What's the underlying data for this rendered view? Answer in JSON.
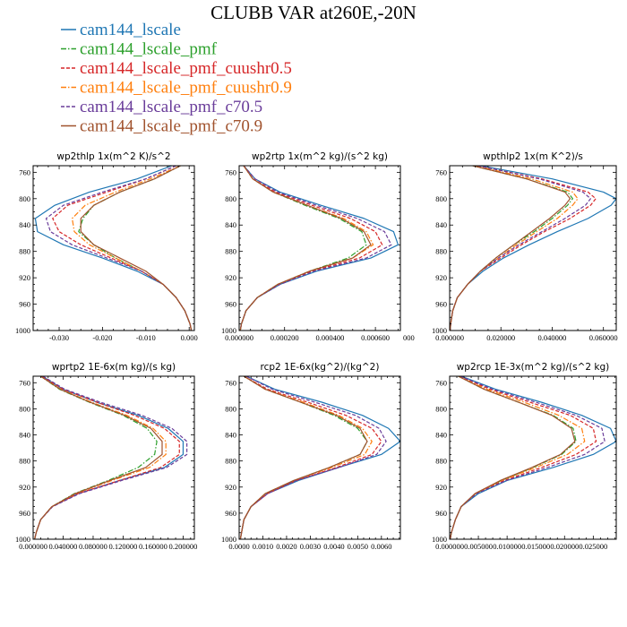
{
  "figure": {
    "title": "CLUBB VAR at260E,-20N"
  },
  "legend": [
    {
      "name": "cam144_lscale",
      "color": "#1f77b4",
      "dash": "solid"
    },
    {
      "name": "cam144_lscale_pmf",
      "color": "#2ca02c",
      "dash": "dashdot"
    },
    {
      "name": "cam144_lscale_pmf_cuushr0.5",
      "color": "#d62728",
      "dash": "dashed"
    },
    {
      "name": "cam144_lscale_pmf_cuushr0.9",
      "color": "#ff7f0e",
      "dash": "dashdot"
    },
    {
      "name": "cam144_lscale_pmf_c70.5",
      "color": "#6a3d9a",
      "dash": "dashed"
    },
    {
      "name": "cam144_lscale_pmf_c70.9",
      "color": "#a0522d",
      "dash": "solid"
    }
  ],
  "chart_data": [
    {
      "type": "line",
      "title": "wp2thlp  1x(m^2 K)/s^2",
      "y": [
        750,
        770,
        790,
        810,
        830,
        850,
        870,
        890,
        910,
        930,
        950,
        970,
        990,
        1000
      ],
      "xlim": [
        -0.036,
        0.0012
      ],
      "ylim": [
        1000,
        750
      ],
      "xticks": [
        -0.03,
        -0.02,
        -0.01,
        0.0
      ],
      "xtick_labels": [
        "-0.030",
        "-0.020",
        "-0.010",
        "0.000"
      ],
      "yticks": [
        760,
        800,
        840,
        880,
        920,
        960,
        1000
      ],
      "ytick_labels": [
        "760",
        "800",
        "840",
        "880",
        "920",
        "960",
        "1000"
      ],
      "series": [
        {
          "name": "cam144_lscale",
          "values": [
            -0.004,
            -0.012,
            -0.023,
            -0.031,
            -0.0355,
            -0.035,
            -0.029,
            -0.02,
            -0.012,
            -0.006,
            -0.003,
            -0.001,
            0.0002,
            0.0005
          ]
        },
        {
          "name": "cam144_lscale_pmf",
          "values": [
            -0.002,
            -0.008,
            -0.016,
            -0.022,
            -0.0245,
            -0.0255,
            -0.022,
            -0.017,
            -0.011,
            -0.006,
            -0.003,
            -0.001,
            0.0002,
            0.0005
          ]
        },
        {
          "name": "cam144_lscale_pmf_cuushr0.5",
          "values": [
            -0.003,
            -0.01,
            -0.019,
            -0.028,
            -0.0315,
            -0.03,
            -0.025,
            -0.018,
            -0.011,
            -0.006,
            -0.003,
            -0.001,
            0.0002,
            0.0005
          ]
        },
        {
          "name": "cam144_lscale_pmf_cuushr0.9",
          "values": [
            -0.002,
            -0.009,
            -0.017,
            -0.024,
            -0.027,
            -0.0265,
            -0.023,
            -0.017,
            -0.011,
            -0.006,
            -0.003,
            -0.001,
            0.0002,
            0.0005
          ]
        },
        {
          "name": "cam144_lscale_pmf_c70.5",
          "values": [
            -0.003,
            -0.01,
            -0.02,
            -0.029,
            -0.033,
            -0.032,
            -0.027,
            -0.019,
            -0.011,
            -0.006,
            -0.003,
            -0.001,
            0.0002,
            0.0005
          ]
        },
        {
          "name": "cam144_lscale_pmf_c70.9",
          "values": [
            -0.002,
            -0.008,
            -0.016,
            -0.022,
            -0.025,
            -0.025,
            -0.022,
            -0.016,
            -0.01,
            -0.006,
            -0.003,
            -0.001,
            0.0002,
            0.0005
          ]
        }
      ]
    },
    {
      "type": "line",
      "title": "wp2rtp  1x(m^2 kg)/(s^2 kg)",
      "y": [
        750,
        770,
        790,
        810,
        830,
        850,
        870,
        890,
        910,
        930,
        950,
        970,
        990,
        1000
      ],
      "xlim": [
        0,
        0.00071
      ],
      "ylim": [
        1000,
        750
      ],
      "xticks": [
        0,
        0.0002,
        0.0004,
        0.0006
      ],
      "xtick_labels": [
        "0.000000",
        "0.000200",
        "0.000400",
        "0.000600"
      ],
      "xtick_suffix": "000",
      "yticks": [
        760,
        800,
        840,
        880,
        920,
        960,
        1000
      ],
      "ytick_labels": [
        "760",
        "800",
        "840",
        "880",
        "920",
        "960",
        "1000"
      ],
      "series": [
        {
          "name": "cam144_lscale",
          "values": [
            2e-05,
            7e-05,
            0.00018,
            0.00036,
            0.00055,
            0.00068,
            0.0007,
            0.00058,
            0.00034,
            0.00018,
            8e-05,
            3e-05,
            1e-05,
            5e-06
          ]
        },
        {
          "name": "cam144_lscale_pmf",
          "values": [
            2e-05,
            6e-05,
            0.00015,
            0.00029,
            0.00044,
            0.00054,
            0.00056,
            0.00048,
            0.00031,
            0.00017,
            8e-05,
            3e-05,
            1e-05,
            5e-06
          ]
        },
        {
          "name": "cam144_lscale_pmf_cuushr0.5",
          "values": [
            2e-05,
            6e-05,
            0.00016,
            0.00032,
            0.00049,
            0.0006,
            0.00063,
            0.00053,
            0.00032,
            0.00017,
            8e-05,
            3e-05,
            1e-05,
            5e-06
          ]
        },
        {
          "name": "cam144_lscale_pmf_cuushr0.9",
          "values": [
            2e-05,
            6e-05,
            0.00015,
            0.0003,
            0.00046,
            0.00056,
            0.00059,
            0.0005,
            0.00031,
            0.00017,
            8e-05,
            3e-05,
            1e-05,
            5e-06
          ]
        },
        {
          "name": "cam144_lscale_pmf_c70.5",
          "values": [
            2e-05,
            7e-05,
            0.00017,
            0.00034,
            0.00052,
            0.00064,
            0.00067,
            0.00056,
            0.00033,
            0.00018,
            8e-05,
            3e-05,
            1e-05,
            5e-06
          ]
        },
        {
          "name": "cam144_lscale_pmf_c70.9",
          "values": [
            2e-05,
            6e-05,
            0.00015,
            0.0003,
            0.00045,
            0.00055,
            0.00058,
            0.0005,
            0.00031,
            0.00017,
            8e-05,
            3e-05,
            1e-05,
            5e-06
          ]
        }
      ]
    },
    {
      "type": "line",
      "title": "wpthlp2  1x(m K^2)/s",
      "y": [
        750,
        770,
        790,
        800,
        810,
        830,
        850,
        870,
        890,
        910,
        930,
        950,
        970,
        990,
        1000
      ],
      "xlim": [
        0,
        0.065
      ],
      "ylim": [
        1000,
        750
      ],
      "xticks": [
        0,
        0.02,
        0.04,
        0.06
      ],
      "xtick_labels": [
        "0.000000",
        "0.020000",
        "0.040000",
        "0.060000"
      ],
      "yticks": [
        760,
        800,
        840,
        880,
        920,
        960,
        1000
      ],
      "ytick_labels": [
        "760",
        "800",
        "840",
        "880",
        "920",
        "960",
        "1000"
      ],
      "series": [
        {
          "name": "cam144_lscale",
          "values": [
            0.012,
            0.04,
            0.06,
            0.065,
            0.063,
            0.054,
            0.042,
            0.031,
            0.021,
            0.013,
            0.007,
            0.003,
            0.0012,
            0.0004,
            0.0002
          ]
        },
        {
          "name": "cam144_lscale_pmf",
          "values": [
            0.009,
            0.03,
            0.046,
            0.048,
            0.046,
            0.04,
            0.033,
            0.025,
            0.018,
            0.012,
            0.007,
            0.003,
            0.0012,
            0.0004,
            0.0002
          ]
        },
        {
          "name": "cam144_lscale_pmf_cuushr0.5",
          "values": [
            0.011,
            0.036,
            0.054,
            0.057,
            0.055,
            0.047,
            0.037,
            0.028,
            0.02,
            0.012,
            0.007,
            0.003,
            0.0012,
            0.0004,
            0.0002
          ]
        },
        {
          "name": "cam144_lscale_pmf_cuushr0.9",
          "values": [
            0.01,
            0.032,
            0.048,
            0.05,
            0.048,
            0.042,
            0.034,
            0.026,
            0.019,
            0.012,
            0.007,
            0.003,
            0.0012,
            0.0004,
            0.0002
          ]
        },
        {
          "name": "cam144_lscale_pmf_c70.5",
          "values": [
            0.011,
            0.035,
            0.052,
            0.055,
            0.053,
            0.045,
            0.036,
            0.027,
            0.019,
            0.012,
            0.007,
            0.003,
            0.0012,
            0.0004,
            0.0002
          ]
        },
        {
          "name": "cam144_lscale_pmf_c70.9",
          "values": [
            0.009,
            0.03,
            0.045,
            0.047,
            0.045,
            0.039,
            0.032,
            0.025,
            0.018,
            0.012,
            0.007,
            0.003,
            0.0012,
            0.0004,
            0.0002
          ]
        }
      ]
    },
    {
      "type": "line",
      "title": "wprtp2  1E-6x(m kg)/(s kg)",
      "y": [
        750,
        770,
        790,
        810,
        830,
        850,
        870,
        890,
        910,
        930,
        950,
        970,
        990,
        1000
      ],
      "xlim": [
        0,
        0.215
      ],
      "ylim": [
        1000,
        750
      ],
      "xticks": [
        0,
        0.04,
        0.08,
        0.12,
        0.16,
        0.2
      ],
      "xtick_labels": [
        "0.000000",
        "0.040000",
        "0.080000",
        "0.120000",
        "0.160000",
        "0.200000"
      ],
      "yticks": [
        760,
        800,
        840,
        880,
        920,
        960,
        1000
      ],
      "ytick_labels": [
        "760",
        "800",
        "840",
        "880",
        "920",
        "960",
        "1000"
      ],
      "series": [
        {
          "name": "cam144_lscale",
          "values": [
            0.012,
            0.04,
            0.085,
            0.14,
            0.18,
            0.2,
            0.2,
            0.175,
            0.115,
            0.06,
            0.025,
            0.01,
            0.004,
            0.002
          ]
        },
        {
          "name": "cam144_lscale_pmf",
          "values": [
            0.01,
            0.035,
            0.075,
            0.12,
            0.152,
            0.165,
            0.162,
            0.14,
            0.1,
            0.055,
            0.025,
            0.01,
            0.004,
            0.002
          ]
        },
        {
          "name": "cam144_lscale_pmf_cuushr0.5",
          "values": [
            0.012,
            0.04,
            0.085,
            0.135,
            0.175,
            0.195,
            0.195,
            0.17,
            0.115,
            0.06,
            0.025,
            0.01,
            0.004,
            0.002
          ]
        },
        {
          "name": "cam144_lscale_pmf_cuushr0.9",
          "values": [
            0.01,
            0.037,
            0.078,
            0.125,
            0.16,
            0.177,
            0.177,
            0.155,
            0.105,
            0.057,
            0.025,
            0.01,
            0.004,
            0.002
          ]
        },
        {
          "name": "cam144_lscale_pmf_c70.5",
          "values": [
            0.013,
            0.042,
            0.09,
            0.145,
            0.185,
            0.205,
            0.205,
            0.178,
            0.118,
            0.062,
            0.026,
            0.01,
            0.004,
            0.002
          ]
        },
        {
          "name": "cam144_lscale_pmf_c70.9",
          "values": [
            0.01,
            0.036,
            0.076,
            0.122,
            0.157,
            0.172,
            0.172,
            0.15,
            0.102,
            0.056,
            0.025,
            0.01,
            0.004,
            0.002
          ]
        }
      ]
    },
    {
      "type": "line",
      "title": "rcp2  1E-6x(kg^2)/(kg^2)",
      "y": [
        750,
        770,
        790,
        810,
        830,
        850,
        870,
        890,
        910,
        930,
        950,
        970,
        990,
        1000
      ],
      "xlim": [
        0,
        0.0068
      ],
      "ylim": [
        1000,
        750
      ],
      "xticks": [
        0,
        0.001,
        0.002,
        0.003,
        0.004,
        0.005,
        0.006
      ],
      "xtick_labels": [
        "0.0000",
        "0.0010",
        "0.0020",
        "0.0030",
        "0.0040",
        "0.0050",
        "0.0060"
      ],
      "yticks": [
        760,
        800,
        840,
        880,
        920,
        960,
        1000
      ],
      "ytick_labels": [
        "760",
        "800",
        "840",
        "880",
        "920",
        "960",
        "1000"
      ],
      "series": [
        {
          "name": "cam144_lscale",
          "values": [
            0.0003,
            0.0015,
            0.0035,
            0.0052,
            0.0063,
            0.0068,
            0.006,
            0.0042,
            0.0025,
            0.0012,
            0.0005,
            0.0002,
            0.0001,
            5e-05
          ]
        },
        {
          "name": "cam144_lscale_pmf",
          "values": [
            0.0002,
            0.0011,
            0.0026,
            0.004,
            0.005,
            0.0054,
            0.0051,
            0.0038,
            0.0023,
            0.0011,
            0.0005,
            0.0002,
            0.0001,
            5e-05
          ]
        },
        {
          "name": "cam144_lscale_pmf_cuushr0.5",
          "values": [
            0.0002,
            0.0012,
            0.0029,
            0.0045,
            0.0056,
            0.006,
            0.0056,
            0.0041,
            0.0024,
            0.0012,
            0.0005,
            0.0002,
            0.0001,
            5e-05
          ]
        },
        {
          "name": "cam144_lscale_pmf_cuushr0.9",
          "values": [
            0.0002,
            0.0011,
            0.0027,
            0.0042,
            0.0052,
            0.0056,
            0.0053,
            0.0039,
            0.0023,
            0.0011,
            0.0005,
            0.0002,
            0.0001,
            5e-05
          ]
        },
        {
          "name": "cam144_lscale_pmf_c70.5",
          "values": [
            0.0003,
            0.0014,
            0.0032,
            0.0049,
            0.0059,
            0.0062,
            0.0058,
            0.0042,
            0.0024,
            0.0012,
            0.0005,
            0.0002,
            0.0001,
            5e-05
          ]
        },
        {
          "name": "cam144_lscale_pmf_c70.9",
          "values": [
            0.0002,
            0.0011,
            0.0026,
            0.0041,
            0.0051,
            0.0054,
            0.0051,
            0.0038,
            0.0023,
            0.0011,
            0.0005,
            0.0002,
            0.0001,
            5e-05
          ]
        }
      ]
    },
    {
      "type": "line",
      "title": "wp2rcp  1E-3x(m^2 kg)/(s^2 kg)",
      "y": [
        750,
        770,
        790,
        810,
        830,
        850,
        870,
        890,
        910,
        930,
        950,
        970,
        990,
        1000
      ],
      "xlim": [
        0,
        0.029
      ],
      "ylim": [
        1000,
        750
      ],
      "xticks": [
        0,
        0.005,
        0.01,
        0.015,
        0.02,
        0.025
      ],
      "xtick_labels": [
        "0.000000",
        "0.005000",
        "0.010000",
        "0.015000",
        "0.020000",
        "0.025000"
      ],
      "yticks": [
        760,
        800,
        840,
        880,
        920,
        960,
        1000
      ],
      "ytick_labels": [
        "760",
        "800",
        "840",
        "880",
        "920",
        "960",
        "1000"
      ],
      "series": [
        {
          "name": "cam144_lscale",
          "values": [
            0.002,
            0.008,
            0.016,
            0.023,
            0.028,
            0.029,
            0.025,
            0.018,
            0.01,
            0.005,
            0.002,
            0.001,
            0.0003,
            0.0001
          ]
        },
        {
          "name": "cam144_lscale_pmf",
          "values": [
            0.0015,
            0.006,
            0.012,
            0.018,
            0.0215,
            0.022,
            0.0195,
            0.0145,
            0.009,
            0.0045,
            0.002,
            0.001,
            0.0003,
            0.0001
          ]
        },
        {
          "name": "cam144_lscale_pmf_cuushr0.5",
          "values": [
            0.0017,
            0.007,
            0.014,
            0.021,
            0.025,
            0.0255,
            0.022,
            0.016,
            0.0095,
            0.0045,
            0.002,
            0.001,
            0.0003,
            0.0001
          ]
        },
        {
          "name": "cam144_lscale_pmf_cuushr0.9",
          "values": [
            0.0015,
            0.0065,
            0.013,
            0.019,
            0.023,
            0.0235,
            0.0205,
            0.015,
            0.009,
            0.0045,
            0.002,
            0.001,
            0.0003,
            0.0001
          ]
        },
        {
          "name": "cam144_lscale_pmf_c70.5",
          "values": [
            0.0018,
            0.0075,
            0.015,
            0.022,
            0.0265,
            0.027,
            0.0235,
            0.017,
            0.0098,
            0.0047,
            0.002,
            0.001,
            0.0003,
            0.0001
          ]
        },
        {
          "name": "cam144_lscale_pmf_c70.9",
          "values": [
            0.0015,
            0.006,
            0.012,
            0.0178,
            0.0212,
            0.0218,
            0.0193,
            0.0143,
            0.0088,
            0.0044,
            0.002,
            0.001,
            0.0003,
            0.0001
          ]
        }
      ]
    }
  ]
}
